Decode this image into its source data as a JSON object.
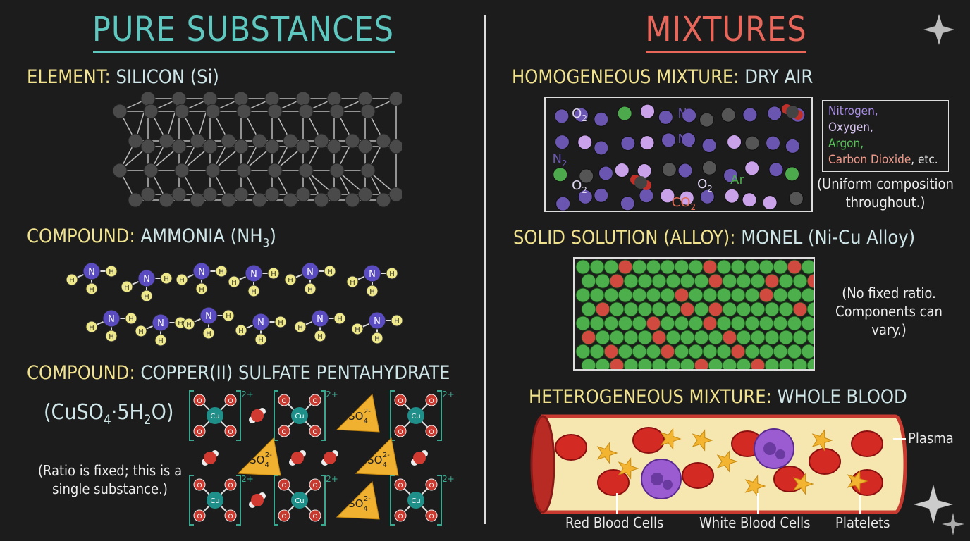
{
  "left": {
    "title": "PURE SUBSTANCES",
    "element": {
      "label": "ELEMENT:",
      "name": "SILICON (Si)"
    },
    "ammonia": {
      "label": "COMPOUND:",
      "name": "AMMONIA (NH",
      "sub": "3",
      "close": ")",
      "atoms": {
        "n": "N",
        "h": "H"
      }
    },
    "copper": {
      "label": "COMPOUND:",
      "name": "COPPER(II) SULFATE PENTAHYDRATE",
      "formula": {
        "a": "(CuSO",
        "s1": "4",
        "b": "·5H",
        "s2": "2",
        "c": "O)"
      },
      "note": "(Ratio is fixed; this is a single substance.)",
      "cu": "Cu",
      "o": "O",
      "charge_cu": "2+",
      "sulfate": "SO",
      "sulfate_sub": "4",
      "sulfate_charge": "2-"
    }
  },
  "right": {
    "title": "MIXTURES",
    "homogeneous": {
      "label": "HOMOGENEOUS MIXTURE:",
      "name": "DRY AIR",
      "molecule_labels": [
        {
          "t": "O",
          "s": "2"
        },
        {
          "t": "N",
          "s": "2"
        },
        {
          "t": "N",
          "s": "2"
        },
        {
          "t": "N",
          "s": "2"
        },
        {
          "t": "O",
          "s": "2"
        },
        {
          "t": "O",
          "s": "2"
        },
        {
          "t": "Ar",
          "s": ""
        },
        {
          "t": "CO",
          "s": "2"
        }
      ],
      "legend": [
        "Nitrogen,",
        "Oxygen,",
        "Argon,",
        "Carbon Dioxide",
        ", etc."
      ],
      "note": "(Uniform composition throughout.)"
    },
    "alloy": {
      "label": "SOLID SOLUTION (ALLOY):",
      "name": "MONEL (Ni-Cu Alloy)",
      "note": "(No fixed ratio. Components can vary.)"
    },
    "heterogeneous": {
      "label": "HETEROGENEOUS MIXTURE:",
      "name": "WHOLE BLOOD",
      "labels": {
        "plasma": "Plasma",
        "rbc": "Red Blood Cells",
        "wbc": "White Blood Cells",
        "platelets": "Platelets"
      }
    }
  },
  "colors": {
    "pure": "#5ec8c0",
    "mix": "#e8665a",
    "heading": "#f1e28e",
    "nitrogen": "#6a55b0",
    "oxygen": "#c9a2ea",
    "argon": "#4caa4c",
    "co2": "#e06a50",
    "nickel": "#4caf4c",
    "copper": "#d04a40",
    "plasma": "#f6e6b0",
    "rbc": "#d42a24",
    "wbc": "#9a5cd0",
    "platelet": "#f2b431"
  }
}
